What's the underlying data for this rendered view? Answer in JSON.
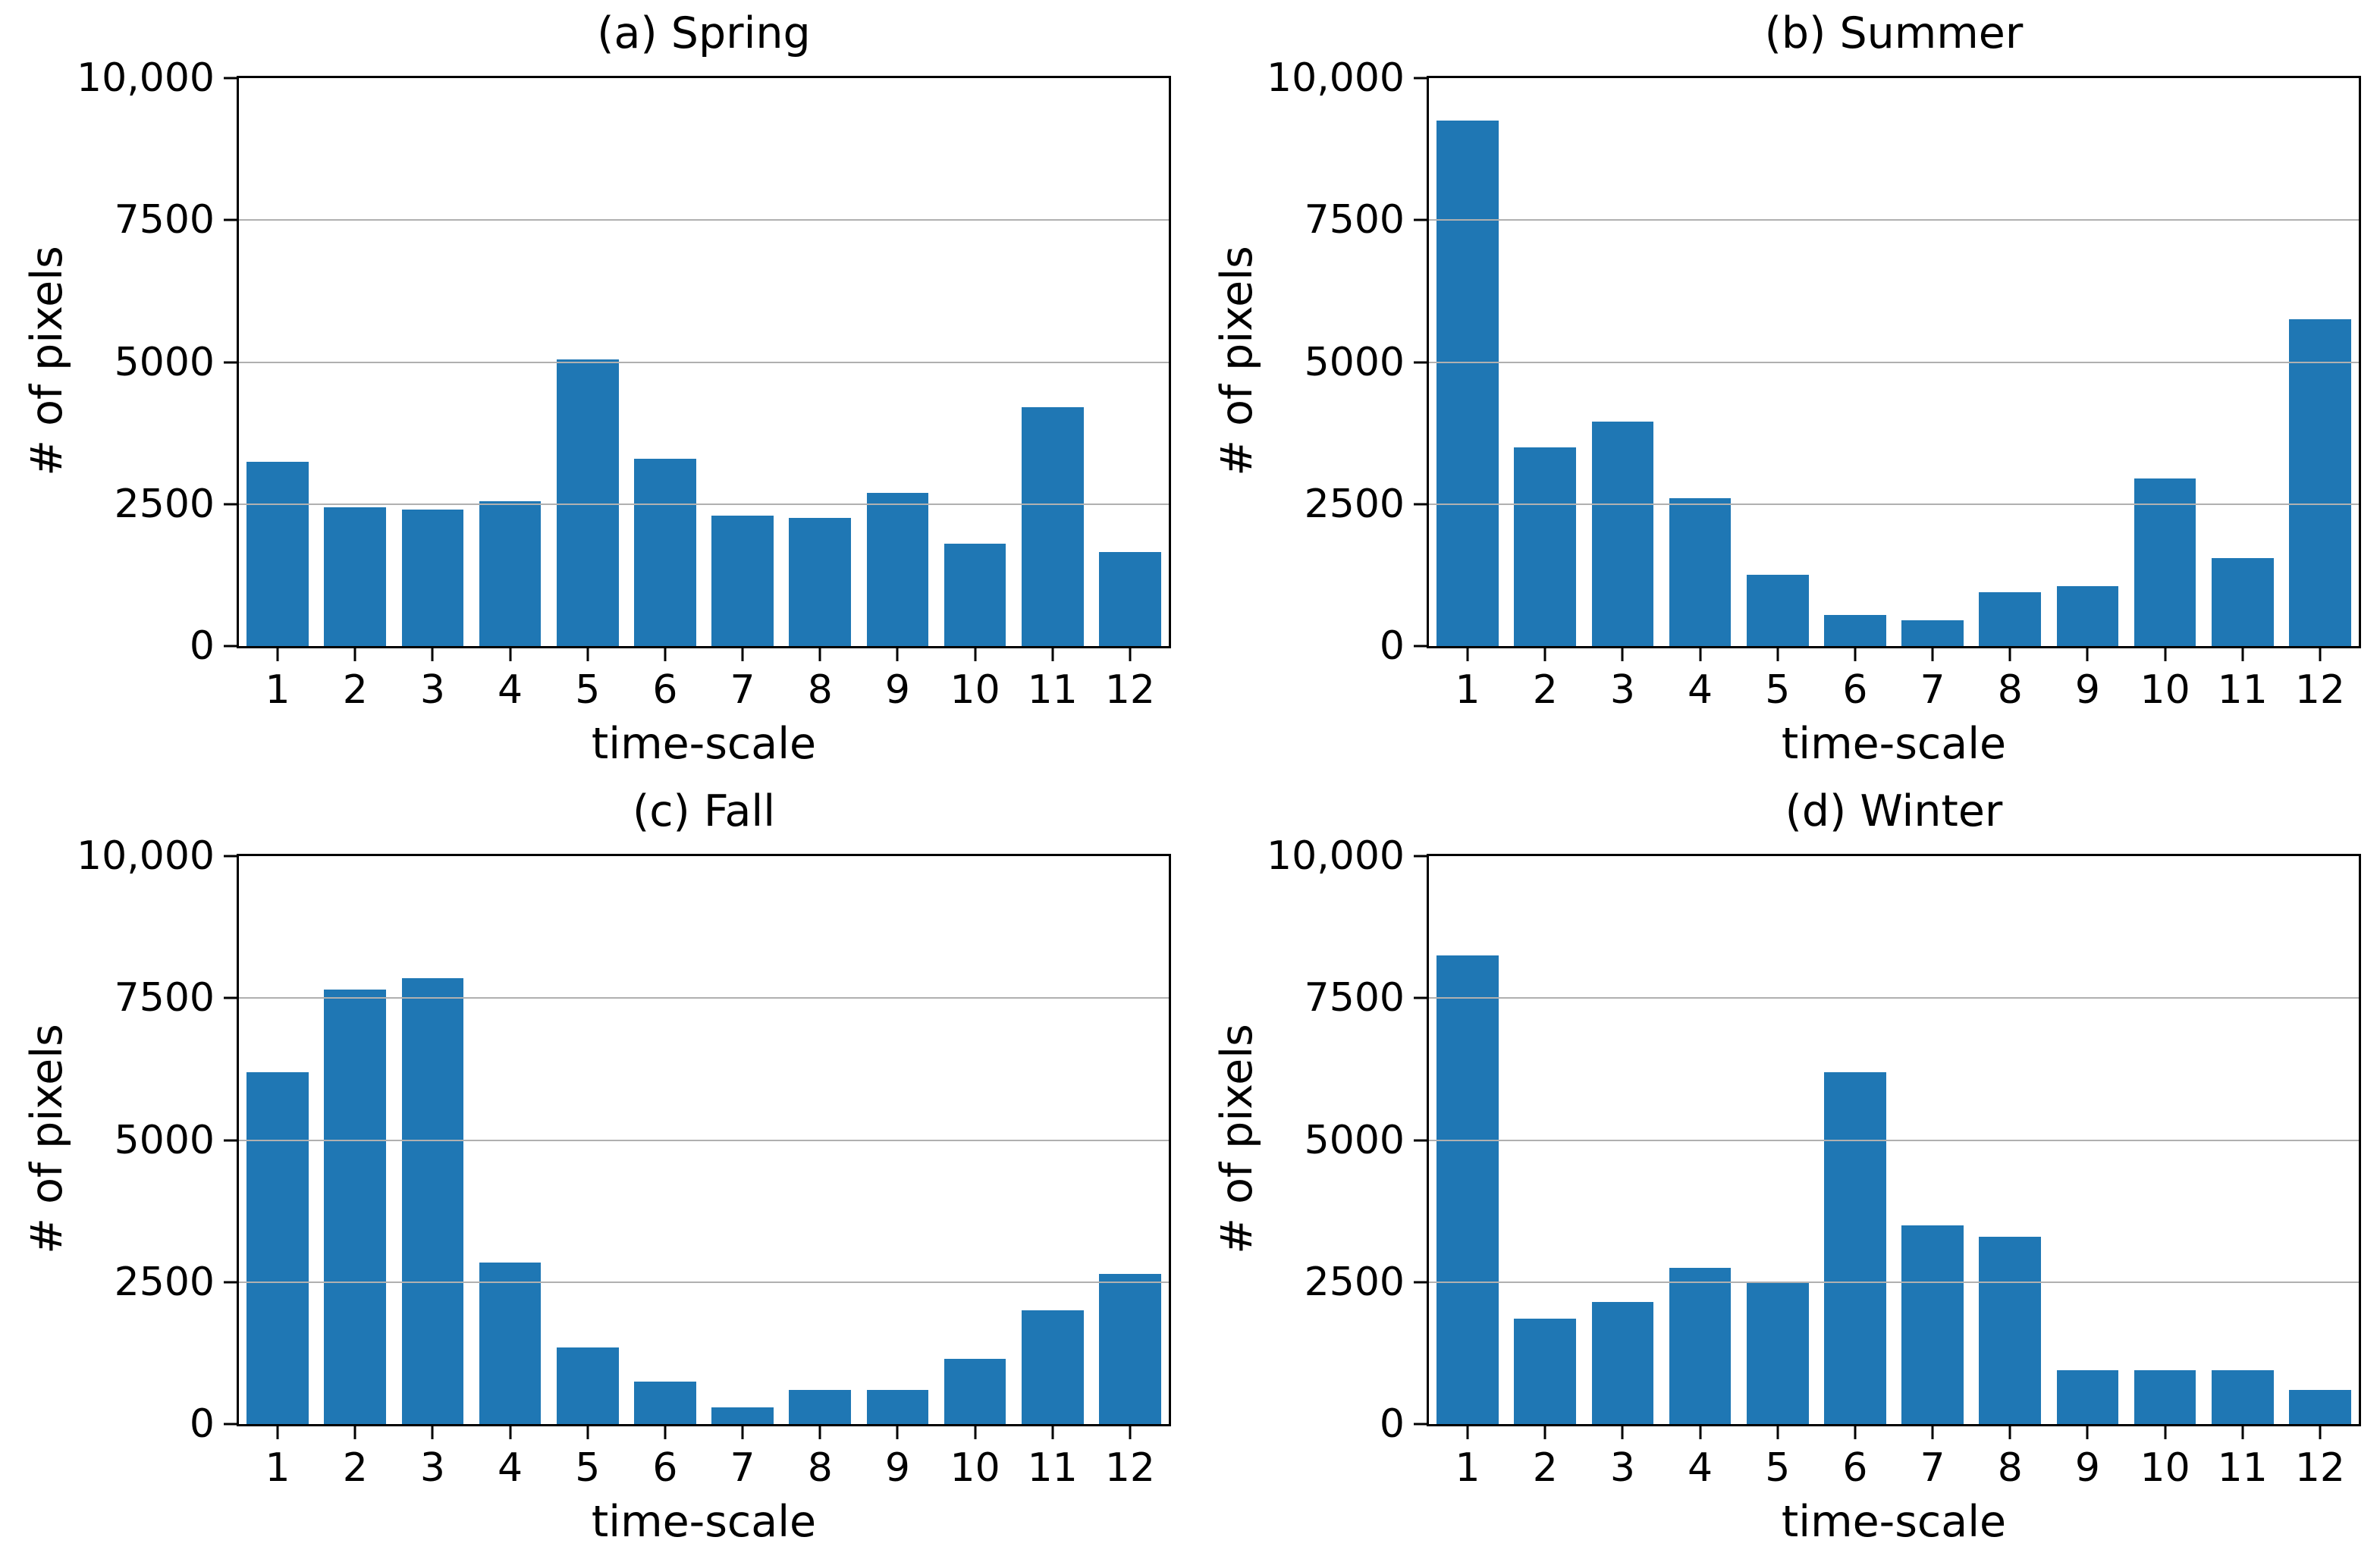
{
  "figure": {
    "background_color": "#ffffff",
    "bar_color": "#1f77b4",
    "grid_color": "#b0b0b0",
    "spine_color": "#000000"
  },
  "chart_data": [
    {
      "type": "bar",
      "title": "(a) Spring",
      "xlabel": "time-scale",
      "ylabel": "# of pixels",
      "categories": [
        "1",
        "2",
        "3",
        "4",
        "5",
        "6",
        "7",
        "8",
        "9",
        "10",
        "11",
        "12"
      ],
      "values": [
        3250,
        2450,
        2400,
        2550,
        5050,
        3300,
        2300,
        2250,
        2700,
        1800,
        4200,
        1650
      ],
      "ylim": [
        0,
        10000
      ],
      "yticks": [
        {
          "value": 0,
          "label": "0"
        },
        {
          "value": 2500,
          "label": "2500"
        },
        {
          "value": 5000,
          "label": "5000"
        },
        {
          "value": 7500,
          "label": "7500"
        },
        {
          "value": 10000,
          "label": "10,000"
        }
      ],
      "gridlines": [
        2500,
        5000,
        7500
      ],
      "grid": "horizontal, drawn over bars",
      "legend": "none",
      "bar_width_fraction": 0.8
    },
    {
      "type": "bar",
      "title": "(b) Summer",
      "xlabel": "time-scale",
      "ylabel": "# of pixels",
      "categories": [
        "1",
        "2",
        "3",
        "4",
        "5",
        "6",
        "7",
        "8",
        "9",
        "10",
        "11",
        "12"
      ],
      "values": [
        9250,
        3500,
        3950,
        2600,
        1250,
        550,
        450,
        950,
        1050,
        2950,
        1550,
        5750
      ],
      "ylim": [
        0,
        10000
      ],
      "yticks": [
        {
          "value": 0,
          "label": "0"
        },
        {
          "value": 2500,
          "label": "2500"
        },
        {
          "value": 5000,
          "label": "5000"
        },
        {
          "value": 7500,
          "label": "7500"
        },
        {
          "value": 10000,
          "label": "10,000"
        }
      ],
      "gridlines": [
        2500,
        5000,
        7500
      ],
      "grid": "horizontal, drawn over bars",
      "legend": "none",
      "bar_width_fraction": 0.8
    },
    {
      "type": "bar",
      "title": "(c) Fall",
      "xlabel": "time-scale",
      "ylabel": "# of pixels",
      "categories": [
        "1",
        "2",
        "3",
        "4",
        "5",
        "6",
        "7",
        "8",
        "9",
        "10",
        "11",
        "12"
      ],
      "values": [
        6200,
        7650,
        7850,
        2850,
        1350,
        750,
        300,
        600,
        600,
        1150,
        2000,
        2650
      ],
      "ylim": [
        0,
        10000
      ],
      "yticks": [
        {
          "value": 0,
          "label": "0"
        },
        {
          "value": 2500,
          "label": "2500"
        },
        {
          "value": 5000,
          "label": "5000"
        },
        {
          "value": 7500,
          "label": "7500"
        },
        {
          "value": 10000,
          "label": "10,000"
        }
      ],
      "gridlines": [
        2500,
        5000,
        7500
      ],
      "grid": "horizontal, drawn over bars",
      "legend": "none",
      "bar_width_fraction": 0.8
    },
    {
      "type": "bar",
      "title": "(d) Winter",
      "xlabel": "time-scale",
      "ylabel": "# of pixels",
      "categories": [
        "1",
        "2",
        "3",
        "4",
        "5",
        "6",
        "7",
        "8",
        "9",
        "10",
        "11",
        "12"
      ],
      "values": [
        8250,
        1850,
        2150,
        2750,
        2480,
        6200,
        3500,
        3300,
        950,
        950,
        950,
        600
      ],
      "ylim": [
        0,
        10000
      ],
      "yticks": [
        {
          "value": 0,
          "label": "0"
        },
        {
          "value": 2500,
          "label": "2500"
        },
        {
          "value": 5000,
          "label": "5000"
        },
        {
          "value": 7500,
          "label": "7500"
        },
        {
          "value": 10000,
          "label": "10,000"
        }
      ],
      "gridlines": [
        2500,
        5000,
        7500
      ],
      "grid": "horizontal, drawn over bars",
      "legend": "none",
      "bar_width_fraction": 0.8
    }
  ]
}
